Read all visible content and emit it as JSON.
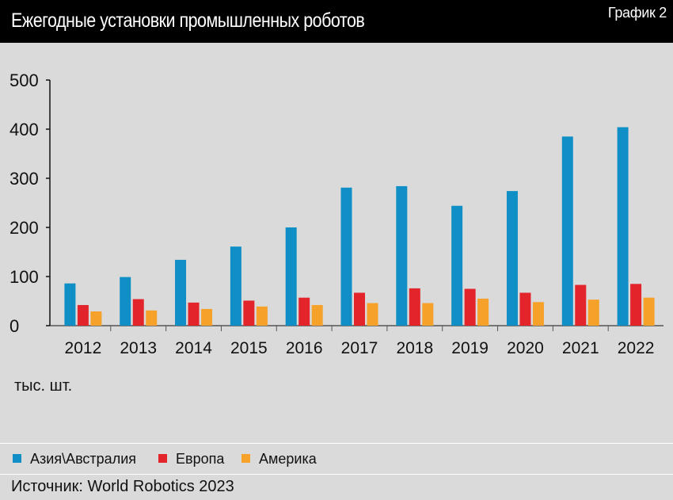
{
  "header": {
    "title": "Ежегодные установки промышленных роботов",
    "chart_label": "График 2"
  },
  "unit_label": "тыс. шт.",
  "source": "Источник: World Robotics 2023",
  "colors": {
    "asia": "#0f8fc6",
    "europe": "#e3242b",
    "america": "#f5a12a",
    "axis": "#111111"
  },
  "chart_data": {
    "type": "bar",
    "title": "Ежегодные установки промышленных роботов",
    "xlabel": "",
    "ylabel": "тыс. шт.",
    "ylim": [
      0,
      500
    ],
    "yticks": [
      0,
      100,
      200,
      300,
      400,
      500
    ],
    "grid": false,
    "legend_position": "bottom",
    "categories": [
      "2012",
      "2013",
      "2014",
      "2015",
      "2016",
      "2017",
      "2018",
      "2019",
      "2020",
      "2021",
      "2022"
    ],
    "series": [
      {
        "name": "Азия\\Австралия",
        "color": "#0f8fc6",
        "values": [
          86,
          99,
          134,
          161,
          200,
          281,
          284,
          244,
          274,
          385,
          404
        ]
      },
      {
        "name": "Европа",
        "color": "#e3242b",
        "values": [
          42,
          54,
          47,
          51,
          57,
          67,
          76,
          75,
          67,
          83,
          85
        ]
      },
      {
        "name": "Америка",
        "color": "#f5a12a",
        "values": [
          29,
          31,
          34,
          39,
          42,
          46,
          46,
          55,
          48,
          53,
          57
        ]
      }
    ]
  }
}
